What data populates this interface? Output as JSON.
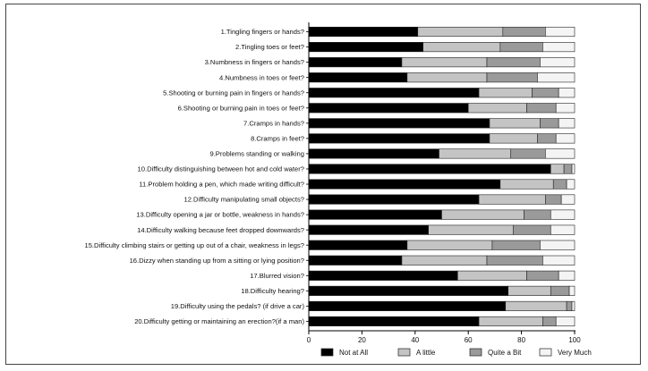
{
  "chart_data": {
    "type": "bar",
    "orientation": "horizontal",
    "stacked": true,
    "categories": [
      "1.Tingling fingers or hands?",
      "2.Tingling toes or feet?",
      "3.Numbness in fingers or hands?",
      "4.Numbness in toes or feet?",
      "5.Shooting or burning pain in fingers or hands?",
      "6.Shooting or burning pain in toes or feet?",
      "7.Cramps in hands?",
      "8.Cramps in feet?",
      "9.Problems standing or walking",
      "10.Difficulty distinguishing between hot and cold water?",
      "11.Problem holding a pen, which made writing difficult?",
      "12.Difficulty manipulating small objects?",
      "13.Difficulty opening a jar or bottle, weakness in hands?",
      "14.Difficulty walking because feet dropped downwards?",
      "15.Difficulty climbing stairs or getting up out of a chair, weakness in legs?",
      "16.Dizzy when standing up from a sitting or lying position?",
      "17.Blurred vision?",
      "18.Difficulty hearing?",
      "19.Difficulty using the pedals? (if drive a car)",
      "20.Difficulty getting or maintaining an erection?(if a man)"
    ],
    "series": [
      {
        "name": "Not at All",
        "color": "#000000",
        "values": [
          41,
          43,
          35,
          37,
          64,
          60,
          68,
          68,
          49,
          91,
          72,
          64,
          50,
          45,
          37,
          35,
          56,
          75,
          74,
          64
        ]
      },
      {
        "name": "A little",
        "color": "#c4c4c4",
        "values": [
          32,
          29,
          32,
          30,
          20,
          22,
          19,
          18,
          27,
          5,
          20,
          25,
          31,
          32,
          32,
          32,
          26,
          16,
          23,
          24
        ]
      },
      {
        "name": "Quite a Bit",
        "color": "#9a9a9a",
        "values": [
          16,
          16,
          20,
          19,
          10,
          11,
          7,
          7,
          13,
          3,
          5,
          6,
          10,
          14,
          18,
          21,
          12,
          7,
          2,
          5
        ]
      },
      {
        "name": "Very Much",
        "color": "#f4f4f4",
        "values": [
          11,
          12,
          13,
          14,
          6,
          7,
          6,
          7,
          11,
          1,
          3,
          5,
          9,
          9,
          13,
          12,
          6,
          2,
          1,
          7
        ]
      }
    ],
    "xticks": [
      "0",
      "20",
      "40",
      "60",
      "80",
      "100"
    ],
    "xlim": [
      0,
      100
    ],
    "legend_position": "bottom",
    "grid": false
  }
}
